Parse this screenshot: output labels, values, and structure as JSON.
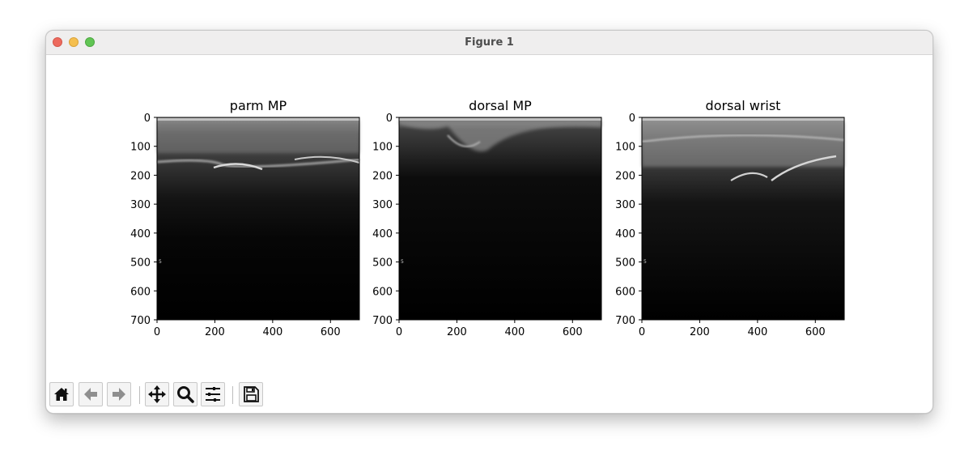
{
  "window": {
    "title": "Figure 1"
  },
  "figure": {
    "panels": [
      {
        "title": "parm MP",
        "xticks": [
          "0",
          "200",
          "400",
          "600"
        ],
        "yticks": [
          "0",
          "100",
          "200",
          "300",
          "400",
          "500",
          "600",
          "700"
        ],
        "marker": "5"
      },
      {
        "title": "dorsal MP",
        "xticks": [
          "0",
          "200",
          "400",
          "600"
        ],
        "yticks": [
          "0",
          "100",
          "200",
          "300",
          "400",
          "500",
          "600",
          "700"
        ],
        "marker": "5"
      },
      {
        "title": "dorsal wrist",
        "xticks": [
          "0",
          "200",
          "400",
          "600"
        ],
        "yticks": [
          "0",
          "100",
          "200",
          "300",
          "400",
          "500",
          "600",
          "700"
        ],
        "marker": "5"
      }
    ]
  },
  "chart_data": [
    {
      "type": "image",
      "title": "parm MP",
      "xlim": [
        0,
        700
      ],
      "ylim": [
        700,
        0
      ],
      "xticks": [
        0,
        200,
        400,
        600
      ],
      "yticks": [
        0,
        100,
        200,
        300,
        400,
        500,
        600,
        700
      ]
    },
    {
      "type": "image",
      "title": "dorsal MP",
      "xlim": [
        0,
        700
      ],
      "ylim": [
        700,
        0
      ],
      "xticks": [
        0,
        200,
        400,
        600
      ],
      "yticks": [
        0,
        100,
        200,
        300,
        400,
        500,
        600,
        700
      ]
    },
    {
      "type": "image",
      "title": "dorsal wrist",
      "xlim": [
        0,
        700
      ],
      "ylim": [
        700,
        0
      ],
      "xticks": [
        0,
        200,
        400,
        600
      ],
      "yticks": [
        0,
        100,
        200,
        300,
        400,
        500,
        600,
        700
      ]
    }
  ],
  "toolbar": {
    "buttons": [
      {
        "name": "home",
        "icon": "home-icon"
      },
      {
        "name": "back",
        "icon": "arrow-left-icon"
      },
      {
        "name": "forward",
        "icon": "arrow-right-icon"
      },
      {
        "name": "pan",
        "icon": "move-icon"
      },
      {
        "name": "zoom",
        "icon": "magnifier-icon"
      },
      {
        "name": "configure-subplots",
        "icon": "sliders-icon"
      },
      {
        "name": "save",
        "icon": "floppy-disk-icon"
      }
    ]
  }
}
